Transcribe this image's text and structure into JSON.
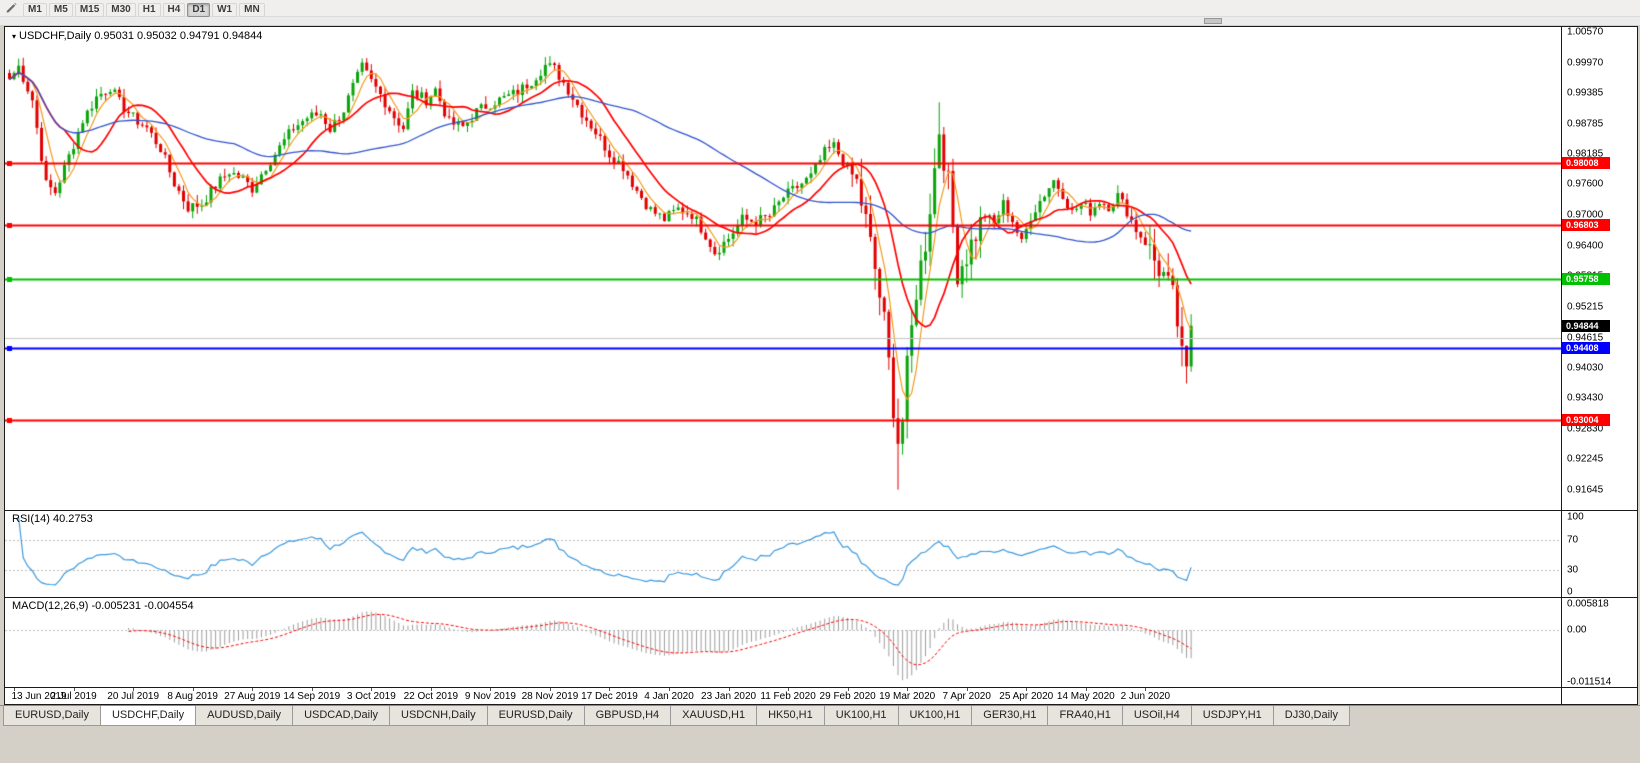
{
  "toolbar": {
    "timeframes": [
      "M1",
      "M5",
      "M15",
      "M30",
      "H1",
      "H4",
      "D1",
      "W1",
      "MN"
    ],
    "active_timeframe": "D1"
  },
  "chart": {
    "title_text": "USDCHF,Daily 0.95031 0.95032 0.94791 0.94844",
    "symbol_period": "USDCHF,Daily",
    "open": "0.95031",
    "high": "0.95032",
    "low": "0.94791",
    "close": "0.94844"
  },
  "rsi_panel": {
    "label_text": "RSI(14) 40.2753"
  },
  "macd_panel": {
    "label_text": "MACD(12,26,9) -0.005231 -0.004554"
  },
  "tabs": [
    "EURUSD,Daily",
    "USDCHF,Daily",
    "AUDUSD,Daily",
    "USDCAD,Daily",
    "USDCNH,Daily",
    "EURUSD,Daily",
    "GBPUSD,H4",
    "XAUUSD,H1",
    "HK50,H1",
    "UK100,H1",
    "UK100,H1",
    "GER30,H1",
    "FRA40,H1",
    "USOil,H4",
    "USDJPY,H1",
    "DJ30,Daily"
  ],
  "active_tab_index": 1,
  "chart_data": {
    "type": "candlestick",
    "symbol": "USDCHF",
    "period": "Daily",
    "price_axis_ticks": [
      "1.00570",
      "0.99970",
      "0.99385",
      "0.98785",
      "0.98185",
      "0.97600",
      "0.97000",
      "0.96400",
      "0.95815",
      "0.95215",
      "0.94615",
      "0.94030",
      "0.93430",
      "0.92830",
      "0.92245",
      "0.91645"
    ],
    "date_axis_ticks": [
      "13 Jun 2019",
      "2 Jul 2019",
      "20 Jul 2019",
      "8 Aug 2019",
      "27 Aug 2019",
      "14 Sep 2019",
      "3 Oct 2019",
      "22 Oct 2019",
      "9 Nov 2019",
      "28 Nov 2019",
      "17 Dec 2019",
      "4 Jan 2020",
      "23 Jan 2020",
      "11 Feb 2020",
      "29 Feb 2020",
      "19 Mar 2020",
      "7 Apr 2020",
      "25 Apr 2020",
      "14 May 2020",
      "2 Jun 2020"
    ],
    "price_range": {
      "top": 1.00667,
      "bottom": 0.91255
    },
    "num_candles": 259,
    "candles_per_date_tick": 13,
    "first_tick_candle_index": 1,
    "up_color": "#0CA30C",
    "down_color": "#E00000",
    "close_anchors": [
      [
        0,
        0.9965
      ],
      [
        2,
        0.999
      ],
      [
        5,
        0.9925
      ],
      [
        8,
        0.976
      ],
      [
        10,
        0.9745
      ],
      [
        13,
        0.9815
      ],
      [
        16,
        0.9885
      ],
      [
        19,
        0.993
      ],
      [
        22,
        0.995
      ],
      [
        24,
        0.992
      ],
      [
        27,
        0.989
      ],
      [
        30,
        0.987
      ],
      [
        33,
        0.983
      ],
      [
        36,
        0.9762
      ],
      [
        39,
        0.9715
      ],
      [
        42,
        0.9722
      ],
      [
        45,
        0.9758
      ],
      [
        48,
        0.9785
      ],
      [
        51,
        0.977
      ],
      [
        53,
        0.9752
      ],
      [
        56,
        0.9795
      ],
      [
        59,
        0.9832
      ],
      [
        62,
        0.987
      ],
      [
        65,
        0.989
      ],
      [
        68,
        0.9898
      ],
      [
        70,
        0.9868
      ],
      [
        73,
        0.9905
      ],
      [
        75,
        0.995
      ],
      [
        77,
        0.9988
      ],
      [
        79,
        0.996
      ],
      [
        81,
        0.9935
      ],
      [
        84,
        0.9892
      ],
      [
        86,
        0.987
      ],
      [
        88,
        0.9938
      ],
      [
        91,
        0.9925
      ],
      [
        93,
        0.9945
      ],
      [
        96,
        0.988
      ],
      [
        99,
        0.9872
      ],
      [
        102,
        0.9902
      ],
      [
        105,
        0.9918
      ],
      [
        108,
        0.9928
      ],
      [
        111,
        0.994
      ],
      [
        114,
        0.9962
      ],
      [
        117,
        0.9992
      ],
      [
        119,
        0.9985
      ],
      [
        122,
        0.9945
      ],
      [
        125,
        0.99
      ],
      [
        128,
        0.9862
      ],
      [
        131,
        0.982
      ],
      [
        134,
        0.9795
      ],
      [
        137,
        0.9748
      ],
      [
        140,
        0.971
      ],
      [
        143,
        0.9692
      ],
      [
        146,
        0.9712
      ],
      [
        149,
        0.9702
      ],
      [
        152,
        0.9662
      ],
      [
        154,
        0.9628
      ],
      [
        157,
        0.9655
      ],
      [
        160,
        0.9692
      ],
      [
        163,
        0.9688
      ],
      [
        166,
        0.9698
      ],
      [
        169,
        0.9735
      ],
      [
        172,
        0.9755
      ],
      [
        175,
        0.9775
      ],
      [
        178,
        0.9822
      ],
      [
        180,
        0.9835
      ],
      [
        182,
        0.9805
      ],
      [
        185,
        0.9762
      ],
      [
        187,
        0.9688
      ],
      [
        189,
        0.9595
      ],
      [
        191,
        0.949
      ],
      [
        193,
        0.933
      ],
      [
        194,
        0.9262
      ],
      [
        195,
        0.93
      ],
      [
        196,
        0.9398
      ],
      [
        198,
        0.9555
      ],
      [
        200,
        0.9648
      ],
      [
        202,
        0.979
      ],
      [
        203,
        0.9868
      ],
      [
        205,
        0.976
      ],
      [
        207,
        0.9592
      ],
      [
        209,
        0.9622
      ],
      [
        211,
        0.9665
      ],
      [
        213,
        0.97
      ],
      [
        215,
        0.9682
      ],
      [
        217,
        0.9722
      ],
      [
        219,
        0.969
      ],
      [
        221,
        0.9645
      ],
      [
        223,
        0.9698
      ],
      [
        225,
        0.9728
      ],
      [
        228,
        0.9768
      ],
      [
        230,
        0.9742
      ],
      [
        232,
        0.9705
      ],
      [
        234,
        0.9722
      ],
      [
        236,
        0.9708
      ],
      [
        238,
        0.9728
      ],
      [
        240,
        0.9718
      ],
      [
        242,
        0.9738
      ],
      [
        244,
        0.9708
      ],
      [
        246,
        0.9672
      ],
      [
        248,
        0.9648
      ],
      [
        250,
        0.9612
      ],
      [
        252,
        0.9582
      ],
      [
        254,
        0.9538
      ],
      [
        255,
        0.949
      ],
      [
        256,
        0.942
      ],
      [
        257,
        0.9388
      ],
      [
        258,
        0.94844
      ]
    ],
    "wick_overrides": {
      "2": {
        "high": 1.0005
      },
      "117": {
        "high": 1.0008
      },
      "194": {
        "low": 0.9165
      },
      "203": {
        "high": 0.992
      },
      "257": {
        "low": 0.9372
      }
    },
    "volatile_zones": [
      [
        184,
        212
      ],
      [
        249,
        258
      ]
    ],
    "moving_averages": [
      {
        "period": 5,
        "color": "#F29A1F",
        "width": 1.2
      },
      {
        "period": 13,
        "color": "#FF0000",
        "width": 1.7
      },
      {
        "period": 50,
        "color": "#3355CC",
        "width": 1.3
      }
    ],
    "horizontal_lines": [
      {
        "price": 0.98008,
        "label": "0.98008",
        "color": "#FF0000",
        "width": 2
      },
      {
        "price": 0.96803,
        "label": "0.96803",
        "color": "#FF0000",
        "width": 2
      },
      {
        "price": 0.95758,
        "label": "0.95758",
        "color": "#00C000",
        "width": 2
      },
      {
        "price": 0.94615,
        "label": "",
        "color": "#C4C4C4",
        "width": 1
      },
      {
        "price": 0.94408,
        "label": "0.94408",
        "color": "#0000FF",
        "width": 2
      },
      {
        "price": 0.93004,
        "label": "0.93004",
        "color": "#FF0000",
        "width": 2
      }
    ],
    "current_price": {
      "label": "0.94844",
      "price": 0.94844,
      "badge_bg": "#000000"
    },
    "rsi": {
      "name": "RSI",
      "period": 14,
      "current": "40.2753",
      "levels": [
        100,
        70,
        30,
        0
      ],
      "dashed_levels": [
        70,
        30
      ],
      "color": "#3E9ADE",
      "range": [
        0,
        100
      ]
    },
    "macd": {
      "name": "MACD",
      "fast": 12,
      "slow": 26,
      "signal": 9,
      "main_value": "-0.005231",
      "signal_value": "-0.004554",
      "axis_ticks": [
        "0.005818",
        "0.00",
        "-0.011514"
      ],
      "max": 0.005818,
      "min": -0.011514,
      "histogram_color": "#9E9E9E",
      "signal_color": "#FF0000"
    }
  }
}
